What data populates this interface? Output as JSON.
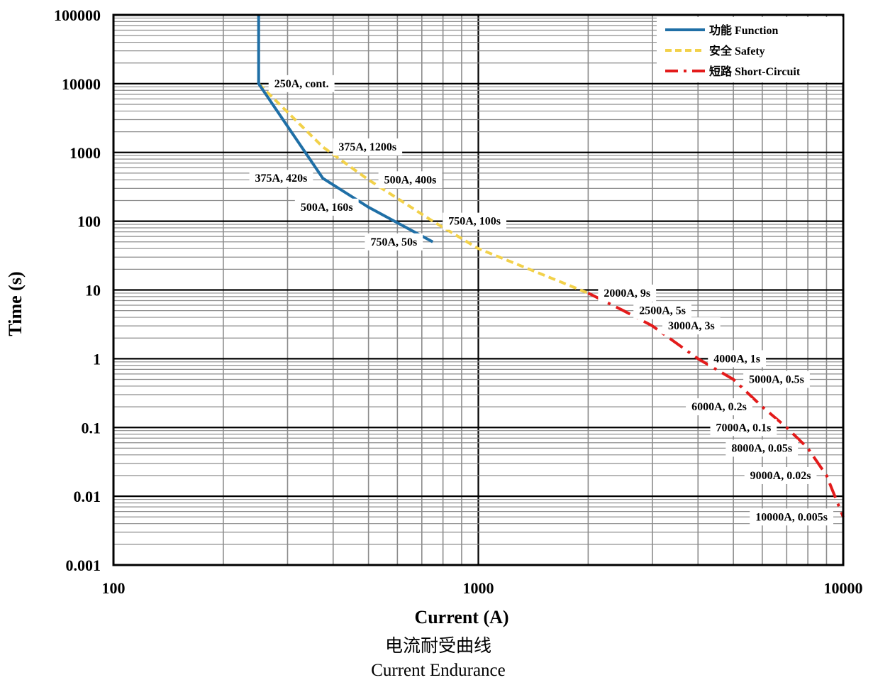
{
  "chart_data": {
    "type": "line",
    "xscale": "log",
    "yscale": "log",
    "xlim": [
      100,
      10000
    ],
    "ylim": [
      0.001,
      100000
    ],
    "grid": true,
    "legend_position": "top-right",
    "xlabel": "Current (A)",
    "ylabel": "Time (s)",
    "caption_cn": "电流耐受曲线",
    "caption_en": "Current Endurance",
    "x_ticks": [
      {
        "value": 100,
        "label": "100"
      },
      {
        "value": 1000,
        "label": "1000"
      },
      {
        "value": 10000,
        "label": "10000"
      }
    ],
    "y_ticks": [
      {
        "value": 100000,
        "label": "100000"
      },
      {
        "value": 10000,
        "label": "10000"
      },
      {
        "value": 1000,
        "label": "1000"
      },
      {
        "value": 100,
        "label": "100"
      },
      {
        "value": 10,
        "label": "10"
      },
      {
        "value": 1,
        "label": "1"
      },
      {
        "value": 0.1,
        "label": "0.1"
      },
      {
        "value": 0.01,
        "label": "0.01"
      },
      {
        "value": 0.001,
        "label": "0.001"
      }
    ],
    "series": [
      {
        "name": "功能 Function",
        "color": "#1F6FA6",
        "dash": "solid",
        "points": [
          [
            250,
            100000
          ],
          [
            250,
            10000
          ],
          [
            375,
            420
          ],
          [
            500,
            160
          ],
          [
            750,
            50
          ]
        ]
      },
      {
        "name": "安全 Safety",
        "color": "#F2D14A",
        "dash": "dashed",
        "points": [
          [
            250,
            10000
          ],
          [
            375,
            1200
          ],
          [
            500,
            400
          ],
          [
            750,
            100
          ],
          [
            1000,
            40
          ],
          [
            2000,
            9
          ]
        ]
      },
      {
        "name": "短路 Short-Circuit",
        "color": "#E31B1B",
        "dash": "dashdot",
        "points": [
          [
            2000,
            9
          ],
          [
            2500,
            5
          ],
          [
            3000,
            3
          ],
          [
            4000,
            1
          ],
          [
            5000,
            0.5
          ],
          [
            6000,
            0.2
          ],
          [
            7000,
            0.1
          ],
          [
            8000,
            0.05
          ],
          [
            9000,
            0.02
          ],
          [
            10000,
            0.005
          ]
        ]
      }
    ],
    "annotations": [
      {
        "text": "250A, cont.",
        "x": 250,
        "y": 10000,
        "anchor": "right"
      },
      {
        "text": "375A, 1200s",
        "x": 375,
        "y": 1200,
        "anchor": "right"
      },
      {
        "text": "500A, 400s",
        "x": 500,
        "y": 400,
        "anchor": "right"
      },
      {
        "text": "750A, 100s",
        "x": 750,
        "y": 100,
        "anchor": "right"
      },
      {
        "text": "375A, 420s",
        "x": 375,
        "y": 420,
        "anchor": "left"
      },
      {
        "text": "500A, 160s",
        "x": 500,
        "y": 160,
        "anchor": "left"
      },
      {
        "text": "750A, 50s",
        "x": 750,
        "y": 50,
        "anchor": "left"
      },
      {
        "text": "2000A, 9s",
        "x": 2000,
        "y": 9,
        "anchor": "right"
      },
      {
        "text": "2500A, 5s",
        "x": 2500,
        "y": 5,
        "anchor": "right"
      },
      {
        "text": "3000A, 3s",
        "x": 3000,
        "y": 3,
        "anchor": "right"
      },
      {
        "text": "4000A, 1s",
        "x": 4000,
        "y": 1,
        "anchor": "right"
      },
      {
        "text": "5000A, 0.5s",
        "x": 5000,
        "y": 0.5,
        "anchor": "right"
      },
      {
        "text": "6000A, 0.2s",
        "x": 6000,
        "y": 0.2,
        "anchor": "left"
      },
      {
        "text": "7000A, 0.1s",
        "x": 7000,
        "y": 0.1,
        "anchor": "left"
      },
      {
        "text": "8000A, 0.05s",
        "x": 8000,
        "y": 0.05,
        "anchor": "left"
      },
      {
        "text": "9000A, 0.02s",
        "x": 9000,
        "y": 0.02,
        "anchor": "left"
      },
      {
        "text": "10000A, 0.005s",
        "x": 10000,
        "y": 0.005,
        "anchor": "left"
      }
    ]
  }
}
